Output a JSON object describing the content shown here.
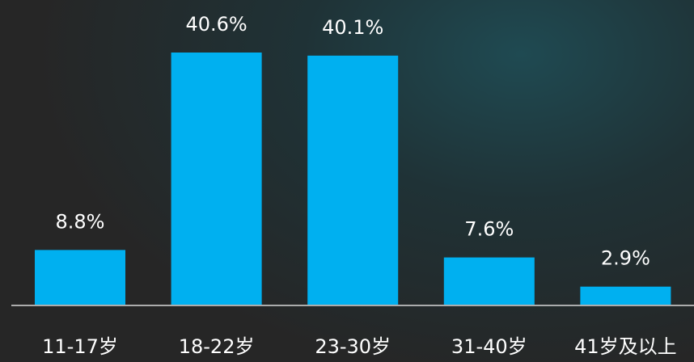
{
  "chart_data": {
    "type": "bar",
    "categories": [
      "11-17岁",
      "18-22岁",
      "23-30岁",
      "31-40岁",
      "41岁及以上"
    ],
    "values": [
      8.8,
      40.6,
      40.1,
      7.6,
      2.9
    ],
    "value_labels": [
      "8.8%",
      "40.6%",
      "40.1%",
      "7.6%",
      "2.9%"
    ],
    "color": "#00b0f0"
  }
}
